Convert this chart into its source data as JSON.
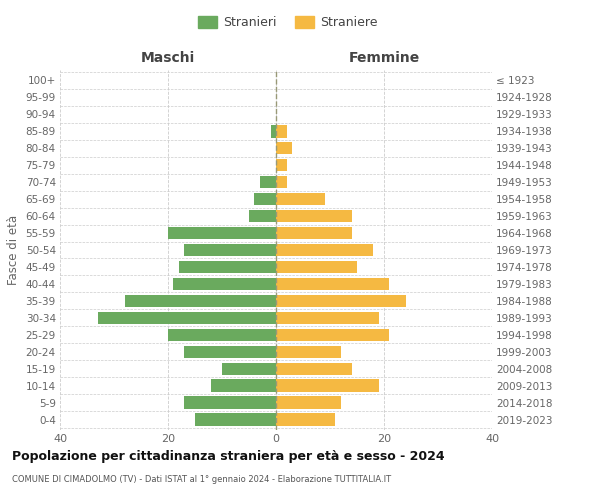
{
  "age_groups": [
    "0-4",
    "5-9",
    "10-14",
    "15-19",
    "20-24",
    "25-29",
    "30-34",
    "35-39",
    "40-44",
    "45-49",
    "50-54",
    "55-59",
    "60-64",
    "65-69",
    "70-74",
    "75-79",
    "80-84",
    "85-89",
    "90-94",
    "95-99",
    "100+"
  ],
  "birth_years": [
    "2019-2023",
    "2014-2018",
    "2009-2013",
    "2004-2008",
    "1999-2003",
    "1994-1998",
    "1989-1993",
    "1984-1988",
    "1979-1983",
    "1974-1978",
    "1969-1973",
    "1964-1968",
    "1959-1963",
    "1954-1958",
    "1949-1953",
    "1944-1948",
    "1939-1943",
    "1934-1938",
    "1929-1933",
    "1924-1928",
    "≤ 1923"
  ],
  "males": [
    15,
    17,
    12,
    10,
    17,
    20,
    33,
    28,
    19,
    18,
    17,
    20,
    5,
    4,
    3,
    0,
    0,
    1,
    0,
    0,
    0
  ],
  "females": [
    11,
    12,
    19,
    14,
    12,
    21,
    19,
    24,
    21,
    15,
    18,
    14,
    14,
    9,
    2,
    2,
    3,
    2,
    0,
    0,
    0
  ],
  "male_color": "#6aaa5e",
  "female_color": "#f5b942",
  "title_main": "Popolazione per cittadinanza straniera per età e sesso - 2024",
  "subtitle": "COMUNE DI CIMADOLMO (TV) - Dati ISTAT al 1° gennaio 2024 - Elaborazione TUTTITALIA.IT",
  "xlabel_left": "Maschi",
  "xlabel_right": "Femmine",
  "ylabel_left": "Fasce di età",
  "legend_male": "Stranieri",
  "legend_female": "Straniere",
  "xlim": 40,
  "background_color": "#ffffff",
  "grid_color": "#cccccc"
}
